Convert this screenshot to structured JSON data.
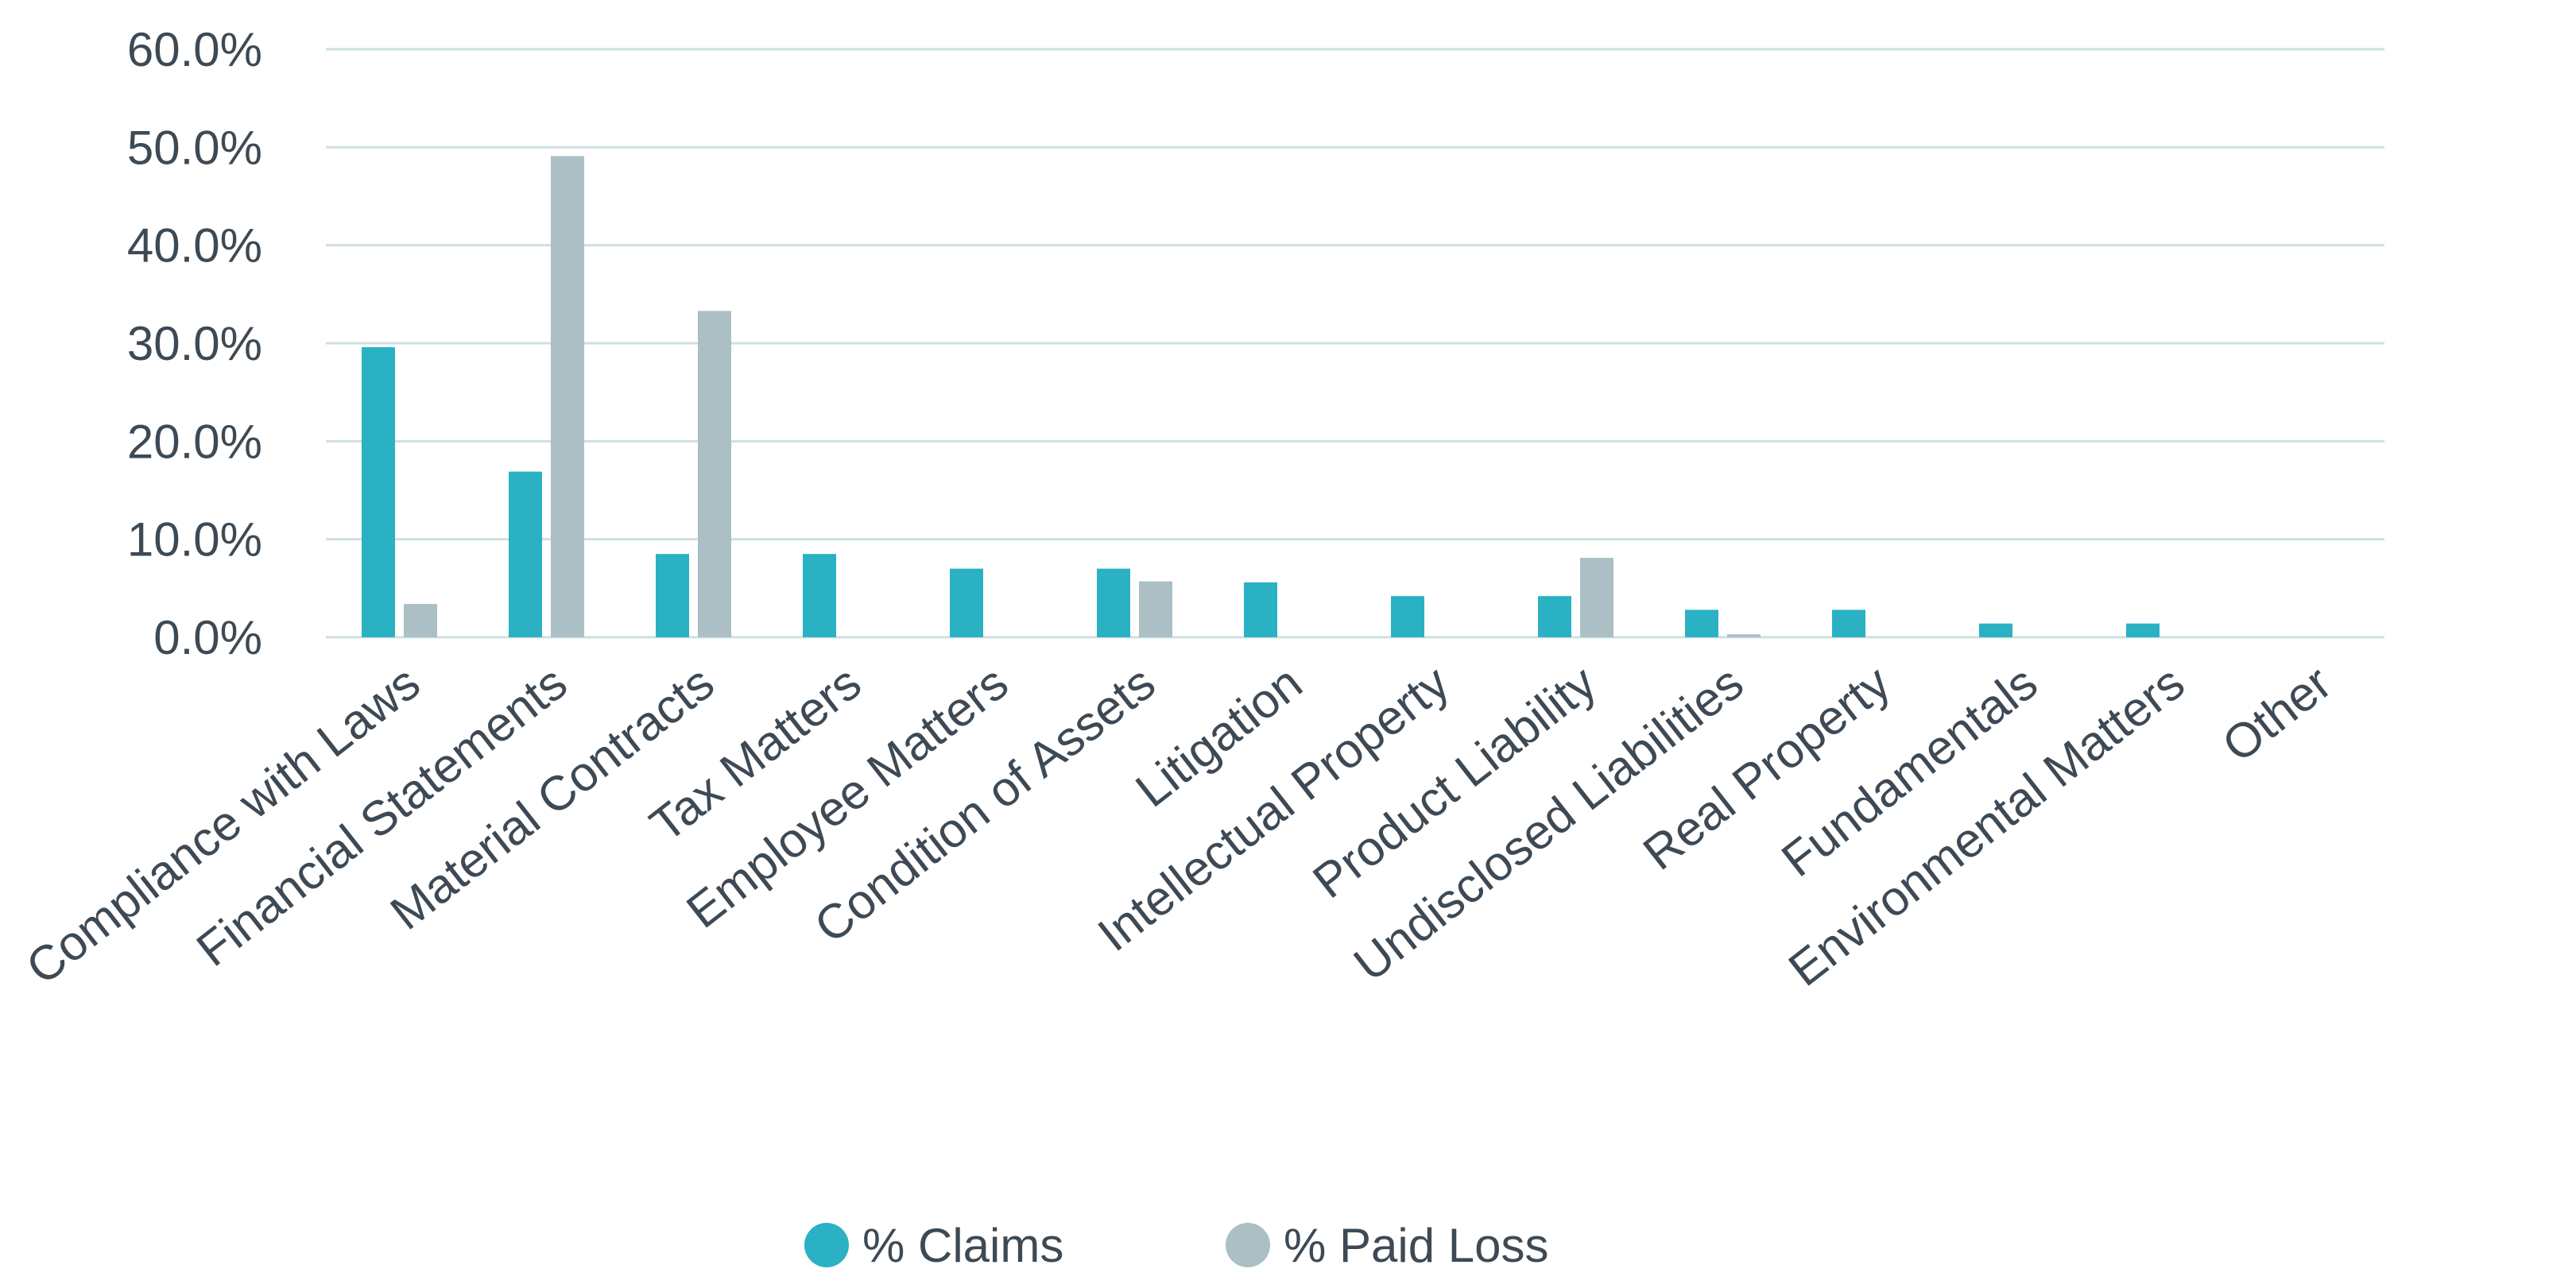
{
  "chart_data": {
    "type": "bar",
    "title": "",
    "xlabel": "",
    "ylabel": "",
    "ylim": [
      0,
      60
    ],
    "yticks": [
      "0.0%",
      "10.0%",
      "20.0%",
      "30.0%",
      "40.0%",
      "50.0%",
      "60.0%"
    ],
    "grid": true,
    "legend_position": "bottom",
    "categories": [
      "Compliance with Laws",
      "Financial Statements",
      "Material Contracts",
      "Tax Matters",
      "Employee Matters",
      "Condition of Assets",
      "Litigation",
      "Intellectual Property",
      "Product Liability",
      "Undisclosed Liabilities",
      "Real Property",
      "Fundamentals",
      "Environmental Matters",
      "Other"
    ],
    "series": [
      {
        "name": "% Claims",
        "color": "#2ab1c4",
        "values": [
          29.6,
          16.9,
          8.5,
          8.5,
          7.0,
          7.0,
          5.6,
          4.2,
          4.2,
          2.8,
          2.8,
          1.4,
          1.4,
          0.0
        ]
      },
      {
        "name": "% Paid Loss",
        "color": "#abbfc4",
        "values": [
          3.4,
          49.1,
          33.3,
          0.0,
          0.0,
          5.7,
          0.0,
          0.0,
          8.1,
          0.3,
          0.0,
          0.0,
          0.0,
          0.0
        ]
      }
    ]
  }
}
